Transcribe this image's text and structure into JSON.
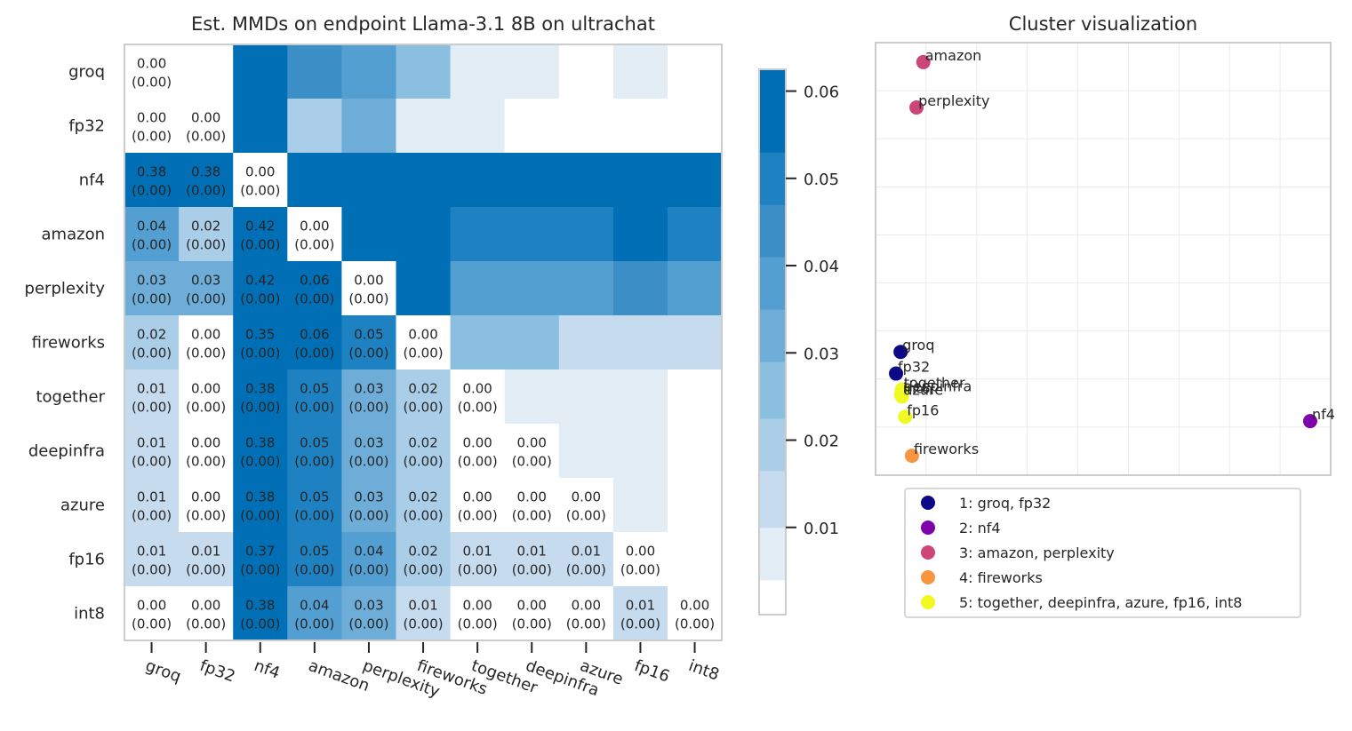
{
  "chart_data": [
    {
      "type": "heatmap",
      "title": "Est. MMDs on endpoint Llama-3.1 8B on ultrachat",
      "rows": [
        "groq",
        "fp32",
        "nf4",
        "amazon",
        "perplexity",
        "fireworks",
        "together",
        "deepinfra",
        "azure",
        "fp16",
        "int8"
      ],
      "cols": [
        "groq",
        "fp32",
        "nf4",
        "amazon",
        "perplexity",
        "fireworks",
        "together",
        "deepinfra",
        "azure",
        "fp16",
        "int8"
      ],
      "values": [
        [
          0.0,
          0.003,
          0.061,
          0.045,
          0.035,
          0.024,
          0.009,
          0.004,
          0.003,
          0.009,
          0.003
        ],
        [
          0.0,
          0.0,
          0.061,
          0.017,
          0.034,
          0.004,
          0.004,
          0.003,
          0.003,
          0.003,
          0.003
        ],
        [
          0.38,
          0.38,
          0.0,
          0.062,
          0.062,
          0.062,
          0.062,
          0.062,
          0.062,
          0.062,
          0.062
        ],
        [
          0.04,
          0.02,
          0.42,
          0.0,
          0.061,
          0.061,
          0.048,
          0.048,
          0.048,
          0.053,
          0.047
        ],
        [
          0.03,
          0.03,
          0.42,
          0.06,
          0.0,
          0.053,
          0.038,
          0.038,
          0.038,
          0.043,
          0.035
        ],
        [
          0.02,
          0.0,
          0.35,
          0.06,
          0.05,
          0.0,
          0.024,
          0.024,
          0.016,
          0.016,
          0.016
        ],
        [
          0.01,
          0.0,
          0.38,
          0.05,
          0.03,
          0.02,
          0.0,
          0.004,
          0.004,
          0.009,
          0.003
        ],
        [
          0.01,
          0.0,
          0.38,
          0.05,
          0.03,
          0.02,
          0.0,
          0.0,
          0.004,
          0.009,
          0.003
        ],
        [
          0.01,
          0.0,
          0.38,
          0.05,
          0.03,
          0.02,
          0.0,
          0.0,
          0.0,
          0.009,
          0.003
        ],
        [
          0.01,
          0.01,
          0.37,
          0.05,
          0.04,
          0.02,
          0.01,
          0.01,
          0.01,
          0.0,
          0.003
        ],
        [
          0.0,
          0.0,
          0.38,
          0.04,
          0.03,
          0.01,
          0.0,
          0.0,
          0.0,
          0.01,
          0.0
        ]
      ],
      "cell_labels": [
        [
          "0.00\n(0.00)",
          "",
          "",
          "",
          "",
          "",
          "",
          "",
          "",
          "",
          ""
        ],
        [
          "0.00\n(0.00)",
          "0.00\n(0.00)",
          "",
          "",
          "",
          "",
          "",
          "",
          "",
          "",
          ""
        ],
        [
          "0.38\n(0.00)",
          "0.38\n(0.00)",
          "0.00\n(0.00)",
          "",
          "",
          "",
          "",
          "",
          "",
          "",
          ""
        ],
        [
          "0.04\n(0.00)",
          "0.02\n(0.00)",
          "0.42\n(0.00)",
          "0.00\n(0.00)",
          "",
          "",
          "",
          "",
          "",
          "",
          ""
        ],
        [
          "0.03\n(0.00)",
          "0.03\n(0.00)",
          "0.42\n(0.00)",
          "0.06\n(0.00)",
          "0.00\n(0.00)",
          "",
          "",
          "",
          "",
          "",
          ""
        ],
        [
          "0.02\n(0.00)",
          "0.00\n(0.00)",
          "0.35\n(0.00)",
          "0.06\n(0.00)",
          "0.05\n(0.00)",
          "0.00\n(0.00)",
          "",
          "",
          "",
          "",
          ""
        ],
        [
          "0.01\n(0.00)",
          "0.00\n(0.00)",
          "0.38\n(0.00)",
          "0.05\n(0.00)",
          "0.03\n(0.00)",
          "0.02\n(0.00)",
          "0.00\n(0.00)",
          "",
          "",
          "",
          ""
        ],
        [
          "0.01\n(0.00)",
          "0.00\n(0.00)",
          "0.38\n(0.00)",
          "0.05\n(0.00)",
          "0.03\n(0.00)",
          "0.02\n(0.00)",
          "0.00\n(0.00)",
          "0.00\n(0.00)",
          "",
          "",
          ""
        ],
        [
          "0.01\n(0.00)",
          "0.00\n(0.00)",
          "0.38\n(0.00)",
          "0.05\n(0.00)",
          "0.03\n(0.00)",
          "0.02\n(0.00)",
          "0.00\n(0.00)",
          "0.00\n(0.00)",
          "0.00\n(0.00)",
          "",
          ""
        ],
        [
          "0.01\n(0.00)",
          "0.01\n(0.00)",
          "0.37\n(0.00)",
          "0.05\n(0.00)",
          "0.04\n(0.00)",
          "0.02\n(0.00)",
          "0.01\n(0.00)",
          "0.01\n(0.00)",
          "0.01\n(0.00)",
          "0.00\n(0.00)",
          ""
        ],
        [
          "0.00\n(0.00)",
          "0.00\n(0.00)",
          "0.38\n(0.00)",
          "0.04\n(0.00)",
          "0.03\n(0.00)",
          "0.01\n(0.00)",
          "0.00\n(0.00)",
          "0.00\n(0.00)",
          "0.00\n(0.00)",
          "0.01\n(0.00)",
          "0.00\n(0.00)"
        ]
      ],
      "colorbar": {
        "ticks": [
          0.01,
          0.02,
          0.03,
          0.04,
          0.05,
          0.06
        ],
        "tick_labels": [
          "0.01",
          "0.02",
          "0.03",
          "0.04",
          "0.05",
          "0.06"
        ],
        "range": [
          0.0,
          0.0625
        ],
        "bounds": [
          0.0,
          0.004,
          0.01,
          0.0165,
          0.0225,
          0.029,
          0.035,
          0.041,
          0.047,
          0.053,
          0.0625
        ],
        "colors": [
          "#ffffff",
          "#e2edf6",
          "#c6dbee",
          "#abcee8",
          "#8bbfe0",
          "#6eadd7",
          "#549fd2",
          "#3c8fc6",
          "#1e81c1",
          "#006fb5"
        ]
      }
    },
    {
      "type": "scatter",
      "title": "Cluster visualization",
      "xlim": [
        0,
        100
      ],
      "ylim": [
        0,
        100
      ],
      "grid": true,
      "points": [
        {
          "name": "amazon",
          "x": 10.5,
          "y": 95.5,
          "cluster": 3
        },
        {
          "name": "perplexity",
          "x": 9.0,
          "y": 85.0,
          "cluster": 3
        },
        {
          "name": "groq",
          "x": 5.5,
          "y": 28.5,
          "cluster": 1
        },
        {
          "name": "fp32",
          "x": 4.5,
          "y": 23.5,
          "cluster": 1
        },
        {
          "name": "together",
          "x": 5.8,
          "y": 19.8,
          "cluster": 5
        },
        {
          "name": "deepinfra",
          "x": 5.8,
          "y": 19.0,
          "cluster": 5
        },
        {
          "name": "azure",
          "x": 5.8,
          "y": 18.2,
          "cluster": 5
        },
        {
          "name": "int8",
          "x": 5.6,
          "y": 18.6,
          "cluster": 5
        },
        {
          "name": "fp16",
          "x": 6.5,
          "y": 13.5,
          "cluster": 5
        },
        {
          "name": "nf4",
          "x": 95.5,
          "y": 12.5,
          "cluster": 2
        },
        {
          "name": "fireworks",
          "x": 8.0,
          "y": 4.5,
          "cluster": 4
        }
      ],
      "legend": {
        "position": "below",
        "entries": [
          {
            "cluster": 1,
            "label": "1: groq, fp32",
            "color": "#0d0887"
          },
          {
            "cluster": 2,
            "label": "2: nf4",
            "color": "#7e03a8"
          },
          {
            "cluster": 3,
            "label": "3: amazon, perplexity",
            "color": "#cc4778"
          },
          {
            "cluster": 4,
            "label": "4: fireworks",
            "color": "#f89540"
          },
          {
            "cluster": 5,
            "label": "5: together, deepinfra, azure, fp16, int8",
            "color": "#f0f921"
          }
        ]
      }
    }
  ]
}
